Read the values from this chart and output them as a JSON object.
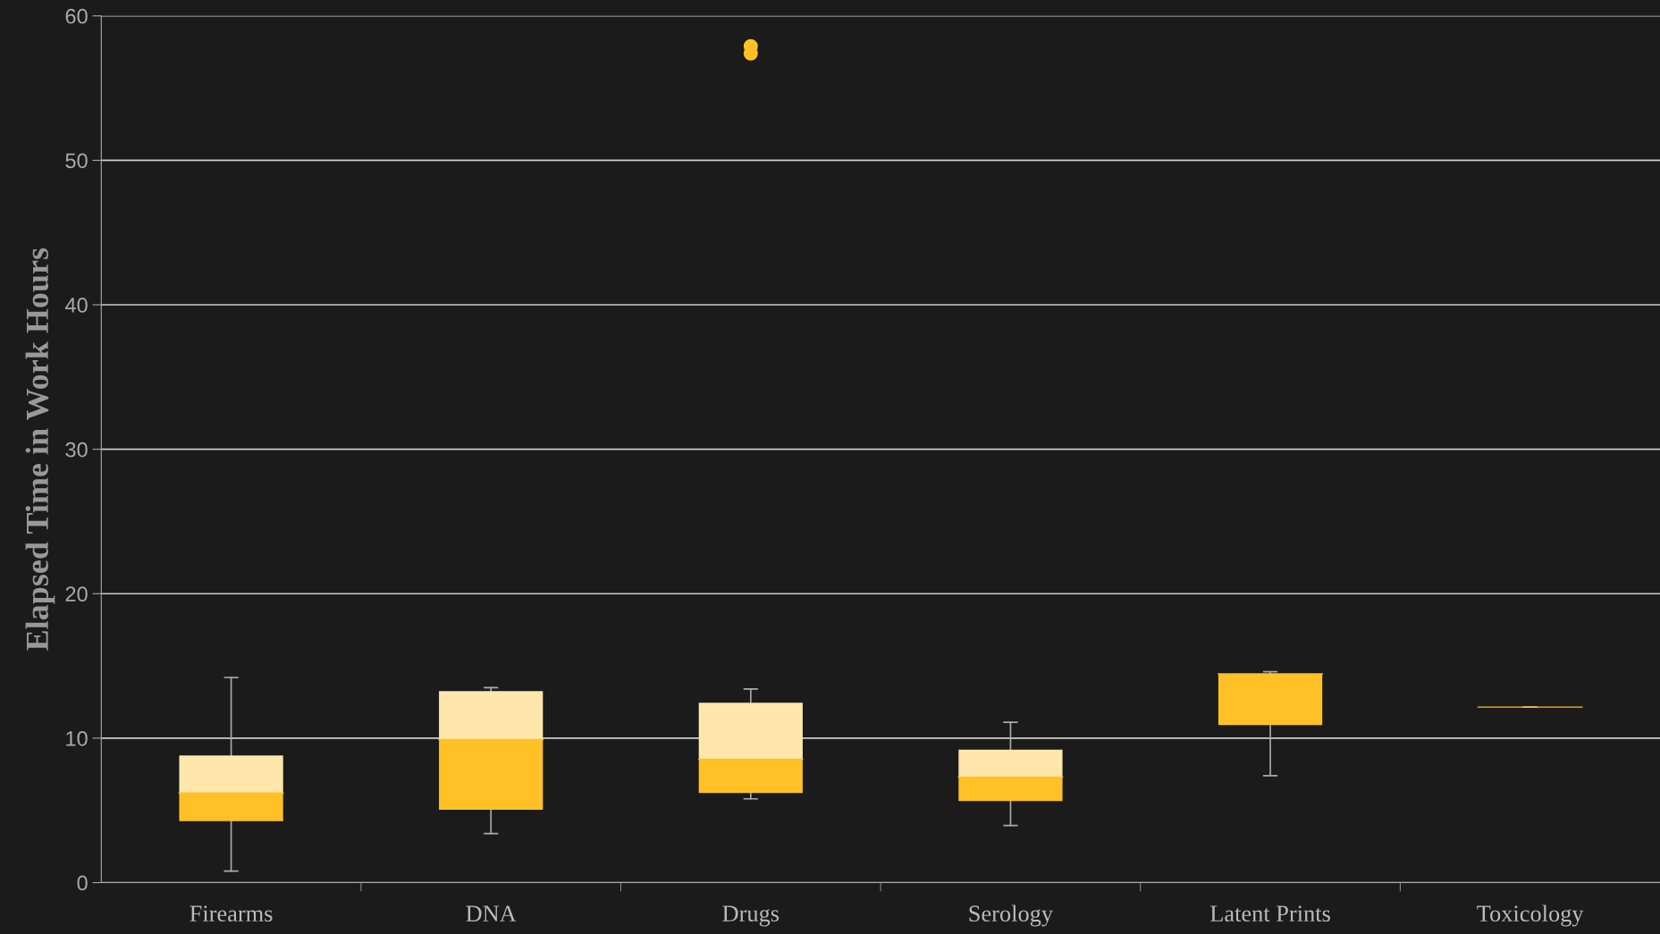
{
  "chart_data": {
    "type": "box",
    "ylabel": "Elapsed Time in Work Hours",
    "categories": [
      "Firearms",
      "DNA",
      "Drugs",
      "Serology",
      "Latent Prints",
      "Toxicology"
    ],
    "color": "#ffc125",
    "ylim": [
      0,
      60
    ],
    "yticks": [
      0,
      10,
      20,
      30,
      40,
      50,
      60
    ],
    "grid": "y",
    "legend": false,
    "boxes": [
      {
        "low": 0.8,
        "q1": 4.25,
        "median": 6.2,
        "q3": 8.8,
        "high": 14.2
      },
      {
        "low": 3.4,
        "q1": 5.05,
        "median": 9.9,
        "q3": 13.25,
        "high": 13.5
      },
      {
        "low": 5.8,
        "q1": 6.2,
        "median": 8.55,
        "q3": 12.45,
        "high": 13.4,
        "outliers": [
          57.9,
          57.4
        ]
      },
      {
        "low": 3.95,
        "q1": 5.65,
        "median": 7.3,
        "q3": 9.2,
        "high": 11.1
      },
      {
        "low": 7.4,
        "q1": 10.9,
        "median": 14.45,
        "q3": 14.45,
        "high": 14.6
      },
      {
        "low": 12.15,
        "q1": 12.15,
        "median": 12.15,
        "q3": 12.15,
        "high": 12.15
      }
    ]
  }
}
